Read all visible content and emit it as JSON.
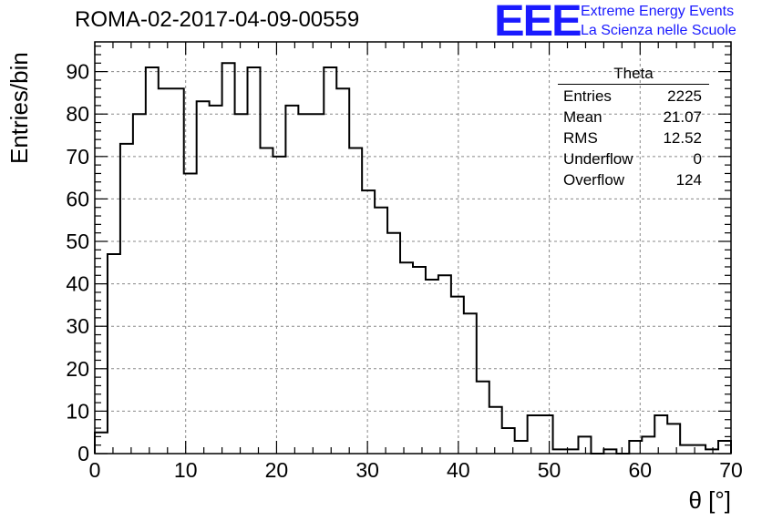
{
  "header": {
    "run_title": "ROMA-02-2017-04-09-00559",
    "logo_letters": "EEE",
    "logo_line1": "Extreme Energy Events",
    "logo_line2": "La Scienza nelle Scuole"
  },
  "stats_box": {
    "title": "Theta",
    "rows": [
      {
        "label": "Entries",
        "value": "2225"
      },
      {
        "label": "Mean",
        "value": "21.07"
      },
      {
        "label": "RMS",
        "value": "12.52"
      },
      {
        "label": "Underflow",
        "value": "0"
      },
      {
        "label": "Overflow",
        "value": "124"
      }
    ]
  },
  "chart_data": {
    "type": "bar",
    "histogram": true,
    "title": "ROMA-02-2017-04-09-00559",
    "xlabel": "θ [°]",
    "ylabel": "Entries/bin",
    "xlim": [
      0,
      70
    ],
    "ylim": [
      0,
      97
    ],
    "bin_width": 1.4,
    "bin_edges_start": 0,
    "values": [
      5,
      47,
      73,
      80,
      91,
      86,
      86,
      66,
      83,
      82,
      92,
      80,
      91,
      72,
      70,
      82,
      80,
      80,
      91,
      86,
      72,
      62,
      58,
      52,
      45,
      44,
      41,
      42,
      37,
      33,
      17,
      11,
      6,
      3,
      9,
      9,
      1,
      1,
      4,
      0,
      1,
      0,
      3,
      4,
      9,
      7,
      2,
      2,
      1,
      3
    ],
    "x_ticks": [
      0,
      10,
      20,
      30,
      40,
      50,
      60,
      70
    ],
    "y_ticks": [
      0,
      10,
      20,
      30,
      40,
      50,
      60,
      70,
      80,
      90
    ],
    "grid": true,
    "line_color": "#000000",
    "grid_color": "#888888"
  }
}
